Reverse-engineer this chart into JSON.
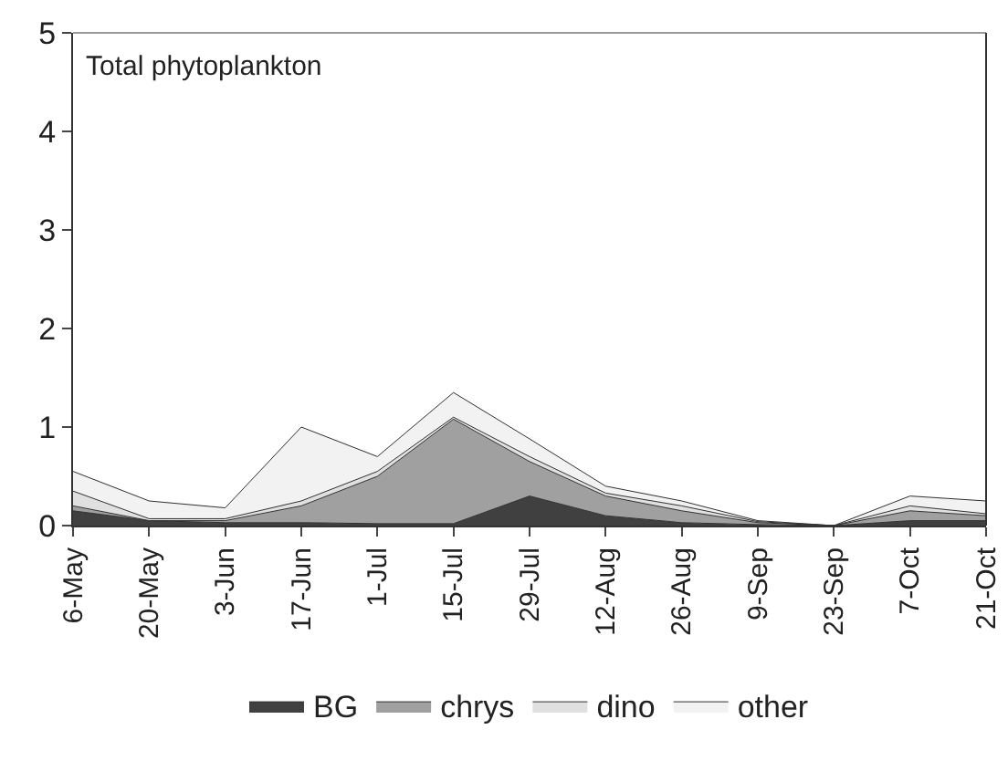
{
  "chart_data": {
    "type": "area",
    "stacked": true,
    "title": "Total phytoplankton",
    "categories": [
      "6-May",
      "20-May",
      "3-Jun",
      "17-Jun",
      "1-Jul",
      "15-Jul",
      "29-Jul",
      "12-Aug",
      "26-Aug",
      "9-Sep",
      "23-Sep",
      "7-Oct",
      "21-Oct"
    ],
    "series": [
      {
        "name": "BG",
        "color": "#404040",
        "values": [
          0.15,
          0.05,
          0.03,
          0.03,
          0.02,
          0.02,
          0.3,
          0.1,
          0.03,
          0.01,
          0,
          0.05,
          0.05
        ]
      },
      {
        "name": "chrys",
        "color": "#a0a0a0",
        "values": [
          0.05,
          0,
          0.02,
          0.17,
          0.48,
          1.06,
          0.35,
          0.2,
          0.12,
          0.02,
          0,
          0.1,
          0.05
        ]
      },
      {
        "name": "dino",
        "color": "#e0e0e0",
        "values": [
          0.15,
          0.02,
          0.02,
          0.05,
          0.05,
          0.02,
          0.05,
          0.03,
          0.05,
          0.01,
          0,
          0.05,
          0.02
        ]
      },
      {
        "name": "other",
        "color": "#f2f2f2",
        "values": [
          0.2,
          0.18,
          0.11,
          0.75,
          0.15,
          0.25,
          0.18,
          0.07,
          0.05,
          0.01,
          0,
          0.1,
          0.13
        ]
      }
    ],
    "ylim": [
      0,
      5
    ],
    "yticks": [
      0,
      1,
      2,
      3,
      4,
      5
    ],
    "grid": false,
    "legend": "bottom"
  }
}
